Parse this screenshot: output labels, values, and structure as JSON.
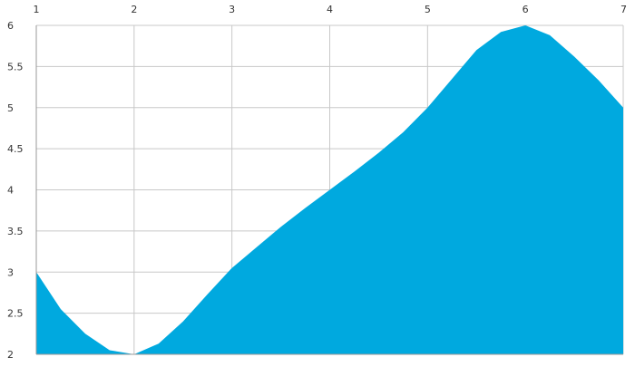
{
  "chart_data": {
    "type": "area",
    "title": "",
    "xlabel": "",
    "ylabel": "",
    "x_axis_position": "top",
    "x_ticks": [
      1,
      2,
      3,
      4,
      5,
      6,
      7
    ],
    "y_ticks": [
      2,
      2.5,
      3,
      3.5,
      4,
      4.5,
      5,
      5.5,
      6
    ],
    "xlim": [
      1,
      7
    ],
    "ylim": [
      2,
      6
    ],
    "grid": true,
    "legend": "none",
    "fill_color": "#00A9DF",
    "series": [
      {
        "x": [
          1,
          1.25,
          1.5,
          1.75,
          2,
          2.25,
          2.5,
          2.75,
          3,
          3.25,
          3.5,
          3.75,
          4,
          4.25,
          4.5,
          4.75,
          5,
          5.25,
          5.5,
          5.75,
          6,
          6.25,
          6.5,
          6.75,
          7
        ],
        "values": [
          3.0,
          2.55,
          2.25,
          2.05,
          2.0,
          2.13,
          2.4,
          2.73,
          3.05,
          3.3,
          3.55,
          3.78,
          4.0,
          4.22,
          4.45,
          4.7,
          5.0,
          5.35,
          5.7,
          5.92,
          6.0,
          5.88,
          5.62,
          5.33,
          5.0
        ]
      }
    ]
  }
}
